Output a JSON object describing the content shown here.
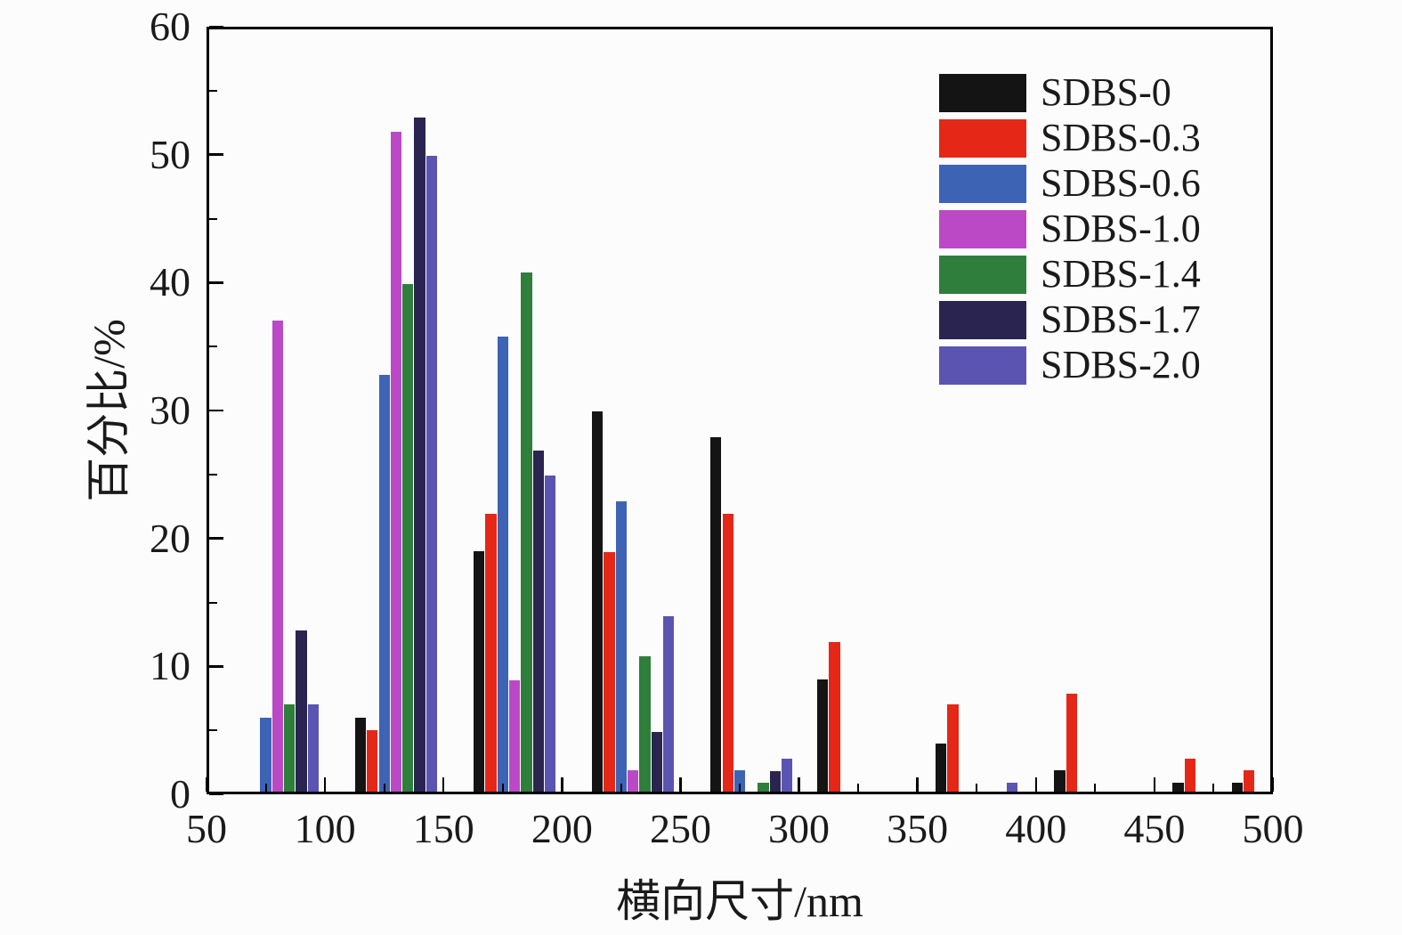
{
  "chart_data": {
    "type": "bar",
    "title": "",
    "xlabel": "横向尺寸/nm",
    "ylabel": "百分比/%",
    "xlim": [
      50,
      500
    ],
    "ylim": [
      0,
      60
    ],
    "x_ticks": [
      50,
      100,
      150,
      200,
      250,
      300,
      350,
      400,
      450,
      500
    ],
    "y_ticks": [
      0,
      10,
      20,
      30,
      40,
      50,
      60
    ],
    "x_minor_step": 25,
    "y_minor_step": 5,
    "grid": false,
    "legend_position": "top-right-inside",
    "group_centers": [
      80,
      130,
      180,
      230,
      280,
      325,
      375,
      425,
      475,
      500
    ],
    "slot_step": 5,
    "bar_width": 4.6,
    "series": [
      {
        "name": "SDBS-0",
        "color": "#141414",
        "values": [
          0,
          6.0,
          19.0,
          29.9,
          27.9,
          9.0,
          4.0,
          1.9,
          0.9,
          0.9
        ]
      },
      {
        "name": "SDBS-0.3",
        "color": "#e52717",
        "values": [
          0,
          5.0,
          21.9,
          18.9,
          21.9,
          11.9,
          7.0,
          7.9,
          2.8,
          1.9
        ]
      },
      {
        "name": "SDBS-0.6",
        "color": "#3d63b5",
        "values": [
          6.0,
          32.8,
          35.8,
          22.9,
          1.9,
          0,
          0,
          0,
          0,
          0
        ]
      },
      {
        "name": "SDBS-1.0",
        "color": "#bb49c5",
        "values": [
          37.0,
          51.8,
          8.9,
          1.9,
          0,
          0,
          0,
          0,
          0,
          0
        ]
      },
      {
        "name": "SDBS-1.4",
        "color": "#2f7e3c",
        "values": [
          7.0,
          39.9,
          40.8,
          10.8,
          0.9,
          0,
          0,
          0,
          0,
          0
        ]
      },
      {
        "name": "SDBS-1.7",
        "color": "#2a2550",
        "values": [
          12.8,
          52.9,
          26.9,
          4.9,
          1.8,
          0,
          0,
          0,
          0,
          0
        ]
      },
      {
        "name": "SDBS-2.0",
        "color": "#5b54b0",
        "values": [
          7.0,
          49.9,
          24.9,
          13.9,
          2.8,
          0,
          0.9,
          0,
          0,
          0
        ]
      }
    ]
  }
}
